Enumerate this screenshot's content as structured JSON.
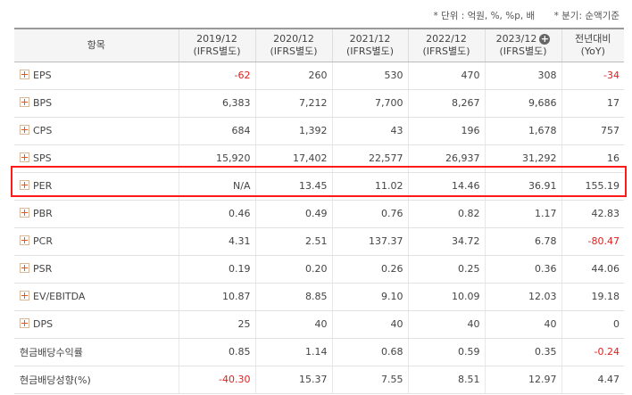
{
  "notes": {
    "unit": "* 단위 : 억원, %, %p, 배",
    "period": "* 분기: 순액기준"
  },
  "header": {
    "item": "항목",
    "cols": [
      {
        "year": "2019/12",
        "basis": "(IFRS별도)"
      },
      {
        "year": "2020/12",
        "basis": "(IFRS별도)"
      },
      {
        "year": "2021/12",
        "basis": "(IFRS별도)"
      },
      {
        "year": "2022/12",
        "basis": "(IFRS별도)"
      },
      {
        "year": "2023/12",
        "basis": "(IFRS별도)"
      }
    ],
    "yoy": {
      "top": "전년대비",
      "bottom": "(YoY)"
    },
    "add_icon": "plus-circle-icon"
  },
  "rows": [
    {
      "label": "EPS",
      "values": [
        "-62",
        "260",
        "530",
        "470",
        "308",
        "-34"
      ],
      "expandable": true
    },
    {
      "label": "BPS",
      "values": [
        "6,383",
        "7,212",
        "7,700",
        "8,267",
        "9,686",
        "17"
      ],
      "expandable": true
    },
    {
      "label": "CPS",
      "values": [
        "684",
        "1,392",
        "43",
        "196",
        "1,678",
        "757"
      ],
      "expandable": true
    },
    {
      "label": "SPS",
      "values": [
        "15,920",
        "17,402",
        "22,577",
        "26,937",
        "31,292",
        "16"
      ],
      "expandable": true
    },
    {
      "label": "PER",
      "values": [
        "N/A",
        "13.45",
        "11.02",
        "14.46",
        "36.91",
        "155.19"
      ],
      "expandable": true
    },
    {
      "label": "PBR",
      "values": [
        "0.46",
        "0.49",
        "0.76",
        "0.82",
        "1.17",
        "42.83"
      ],
      "expandable": true
    },
    {
      "label": "PCR",
      "values": [
        "4.31",
        "2.51",
        "137.37",
        "34.72",
        "6.78",
        "-80.47"
      ],
      "expandable": true
    },
    {
      "label": "PSR",
      "values": [
        "0.19",
        "0.20",
        "0.26",
        "0.25",
        "0.36",
        "44.06"
      ],
      "expandable": true
    },
    {
      "label": "EV/EBITDA",
      "values": [
        "10.87",
        "8.85",
        "9.10",
        "10.09",
        "12.03",
        "19.18"
      ],
      "expandable": true
    },
    {
      "label": "DPS",
      "values": [
        "25",
        "40",
        "40",
        "40",
        "40",
        "0"
      ],
      "expandable": true
    },
    {
      "label": "현금배당수익률",
      "values": [
        "0.85",
        "1.14",
        "0.68",
        "0.59",
        "0.35",
        "-0.24"
      ],
      "expandable": false
    },
    {
      "label": "현금배당성향(%)",
      "values": [
        "-40.30",
        "15.37",
        "7.55",
        "8.51",
        "12.97",
        "4.47"
      ],
      "expandable": false
    }
  ],
  "highlight_row": "PER",
  "colors": {
    "negative": "#e02020",
    "highlight": "#ff1a1a",
    "expand_icon": "#e05a20"
  }
}
